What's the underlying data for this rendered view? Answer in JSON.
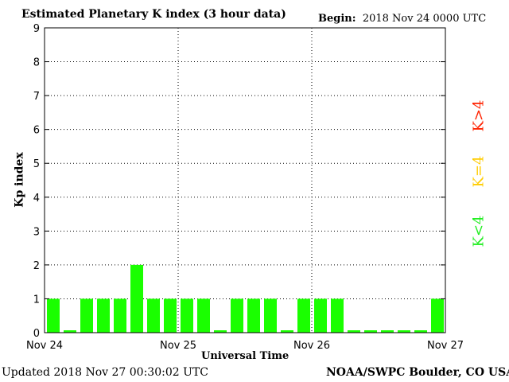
{
  "header": {
    "title": "Estimated Planetary K index (3 hour data)",
    "begin_label": "Begin:",
    "begin_value": "2018 Nov 24 0000 UTC"
  },
  "footer": {
    "updated": "Updated 2018 Nov 27 00:30:02 UTC",
    "credit": "NOAA/SWPC Boulder, CO USA"
  },
  "legend": {
    "below": {
      "label": "K<4",
      "color": "#22ee22"
    },
    "equal": {
      "label": "K=4",
      "color": "#ffcc00"
    },
    "above": {
      "label": "K>4",
      "color": "#ff2200"
    }
  },
  "chart_data": {
    "type": "bar",
    "title": "Estimated Planetary K index (3 hour data)",
    "xlabel": "Universal Time",
    "ylabel": "Kp index",
    "ylim": [
      0,
      9
    ],
    "yticks": [
      "0",
      "1",
      "2",
      "3",
      "4",
      "5",
      "6",
      "7",
      "8",
      "9"
    ],
    "xticks": [
      "Nov 24",
      "Nov 25",
      "Nov 26",
      "Nov 27"
    ],
    "grid": true,
    "bar_color": "#1aff00",
    "values": [
      1,
      0,
      1,
      1,
      1,
      2,
      1,
      1,
      1,
      1,
      0,
      1,
      1,
      1,
      0,
      1,
      1,
      1,
      0,
      0,
      0,
      0,
      0,
      1
    ]
  }
}
